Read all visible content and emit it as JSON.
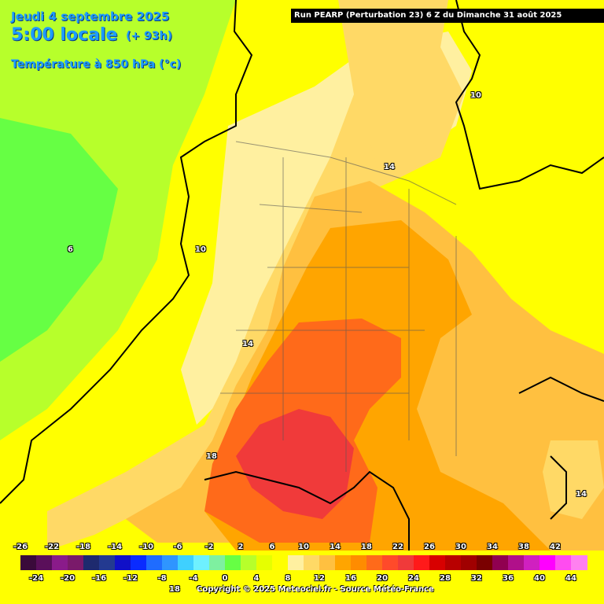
{
  "header": {
    "date": "Jeudi 4 septembre 2025",
    "time": "5:00 locale",
    "lead": "(+ 93h)",
    "parameter": "Température à 850 hPa (°c)",
    "run": "Run PEARP (Perturbation 23) 6 Z du Dimanche 31 août 2025"
  },
  "contour_labels": [
    "10",
    "14",
    "6",
    "10",
    "14",
    "18",
    "14"
  ],
  "legend": {
    "top_ticks": [
      "-26",
      "-22",
      "-18",
      "-14",
      "-10",
      "-6",
      "-2",
      "2",
      "6",
      "10",
      "14",
      "18",
      "22",
      "26",
      "30",
      "34",
      "38",
      "42"
    ],
    "bottom_ticks": [
      "-24",
      "-20",
      "-16",
      "-12",
      "-8",
      "-4",
      "0",
      "4",
      "8",
      "12",
      "16",
      "20",
      "24",
      "28",
      "32",
      "36",
      "40",
      "44"
    ],
    "colors": [
      "#3a0a3a",
      "#5a0f5a",
      "#8a1b8a",
      "#7a1a6a",
      "#1e2a6e",
      "#233a90",
      "#1010c8",
      "#0a2bff",
      "#1f6cff",
      "#2f95ff",
      "#3fd0ff",
      "#6ef0ff",
      "#7ef0a0",
      "#66ff44",
      "#b7ff2b",
      "#e6ff00",
      "#ffff00",
      "#fff0a0",
      "#ffd966",
      "#ffc040",
      "#ffa500",
      "#ff8c00",
      "#ff6a1a",
      "#ff4a2a",
      "#f03a3a",
      "#ff1a1a",
      "#d80000",
      "#b80000",
      "#a00000",
      "#7a0000",
      "#900050",
      "#b0108a",
      "#d020c0",
      "#ff00ff",
      "#ff4cf0",
      "#ff80f0"
    ]
  },
  "extra_label": "18",
  "copyright": "Copyright © 2025 Meteociel.fr - Source Météo-France"
}
